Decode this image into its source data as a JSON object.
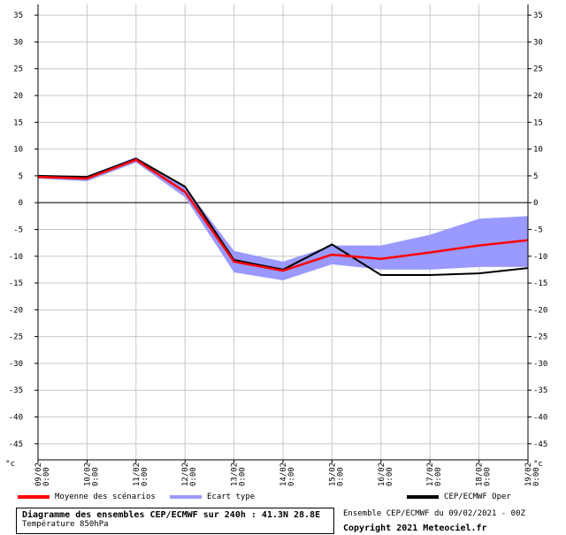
{
  "chart_data": {
    "type": "line",
    "ylim": [
      -48,
      37
    ],
    "yticks": [
      35,
      30,
      25,
      20,
      15,
      10,
      5,
      0,
      -5,
      -10,
      -15,
      -20,
      -25,
      -30,
      -35,
      -40,
      -45
    ],
    "yunit": "°c",
    "categories": [
      "09/02\n0:00",
      "10/02\n0:00",
      "11/02\n0:00",
      "12/02\n0:00",
      "13/02\n0:00",
      "14/02\n0:00",
      "15/02\n0:00",
      "16/02\n0:00",
      "17/02\n0:00",
      "18/02\n0:00",
      "19/02\n0:00"
    ],
    "grid": true,
    "band": {
      "name": "Ecart type",
      "color": "#9999ff",
      "upper": [
        5,
        5,
        8.5,
        3,
        -9,
        -11,
        -8,
        -8,
        -6,
        -3,
        -2.5
      ],
      "lower": [
        4.5,
        4,
        7.5,
        1,
        -13,
        -14.5,
        -11.5,
        -12.5,
        -12.5,
        -12,
        -12
      ]
    },
    "series": [
      {
        "name": "Moyenne des scénarios",
        "color": "#ff0000",
        "values": [
          4.8,
          4.5,
          8.0,
          2.0,
          -11.0,
          -12.7,
          -9.7,
          -10.5,
          -9.3,
          -8.0,
          -7.0
        ]
      },
      {
        "name": "CEP/ECMWF Oper",
        "color": "#000000",
        "values": [
          5.0,
          4.8,
          8.2,
          3.0,
          -10.7,
          -12.5,
          -7.8,
          -13.5,
          -13.5,
          -13.2,
          -12.2
        ]
      }
    ]
  },
  "legend": {
    "mean_label": "Moyenne des scénarios",
    "band_label": "Ecart type",
    "oper_label": "CEP/ECMWF Oper"
  },
  "info": {
    "title": "Diagramme des ensembles CEP/ECMWF sur 240h : 41.3N 28.8E",
    "subtitle": "Température 850hPa",
    "run": "Ensemble CEP/ECMWF du 09/02/2021 - 00Z",
    "copyright": "Copyright 2021 Meteociel.fr"
  }
}
